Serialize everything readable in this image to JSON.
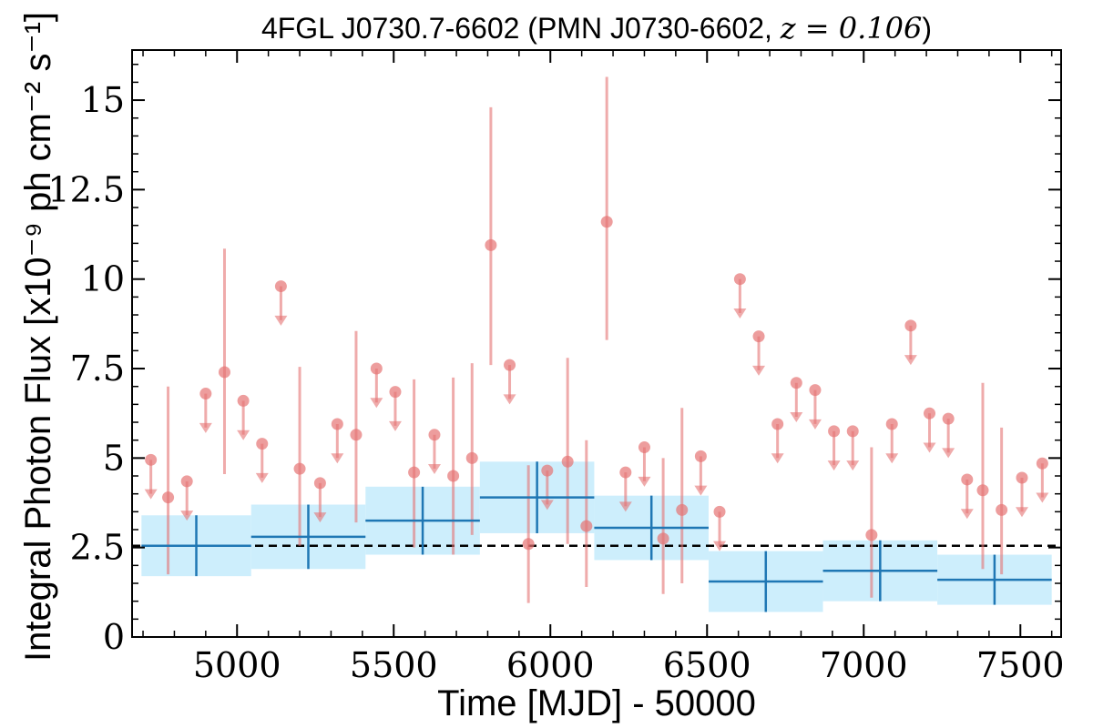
{
  "chart_data": {
    "type": "scatter",
    "title_source": "4FGL J0730.7-6602 (PMN J0730-6602, ",
    "title_math": "z = 0.106",
    "title_close": ")",
    "xlabel": "Time [MJD] - 50000",
    "ylabel": "Integral Photon Flux [x10⁻⁹ ph cm⁻² s⁻¹]",
    "xlim": [
      4665,
      7630
    ],
    "ylim": [
      0,
      16.4
    ],
    "x_ticks": [
      5000,
      5500,
      6000,
      6500,
      7000,
      7500
    ],
    "y_ticks": [
      0,
      2.5,
      5,
      7.5,
      10,
      12.5,
      15
    ],
    "y_tick_labels": [
      "0",
      "2.5",
      "5",
      "7.5",
      "10",
      "12.5",
      "15"
    ],
    "mean_flux": 2.55,
    "colors": {
      "short_bins": "#e57373",
      "long_bins": "#1f77b4",
      "long_bins_band": "#cdeefc",
      "mean_line": "#000000"
    },
    "short_detections": [
      {
        "x": 4780,
        "y": 3.9,
        "lo": 1.75,
        "hi": 7.0
      },
      {
        "x": 4960,
        "y": 7.4,
        "lo": 4.55,
        "hi": 10.85
      },
      {
        "x": 5200,
        "y": 4.7,
        "lo": 2.55,
        "hi": 7.55
      },
      {
        "x": 5380,
        "y": 5.65,
        "lo": 3.2,
        "hi": 8.55
      },
      {
        "x": 5565,
        "y": 4.6,
        "lo": 2.5,
        "hi": 7.2
      },
      {
        "x": 5690,
        "y": 4.5,
        "lo": 2.3,
        "hi": 7.25
      },
      {
        "x": 5750,
        "y": 5.0,
        "lo": 2.85,
        "hi": 7.65
      },
      {
        "x": 5810,
        "y": 10.95,
        "lo": 7.6,
        "hi": 14.8
      },
      {
        "x": 5930,
        "y": 2.6,
        "lo": 0.95,
        "hi": 4.8
      },
      {
        "x": 6055,
        "y": 4.9,
        "lo": 2.6,
        "hi": 7.8
      },
      {
        "x": 6115,
        "y": 3.1,
        "lo": 1.4,
        "hi": 5.5
      },
      {
        "x": 6180,
        "y": 11.6,
        "lo": 8.3,
        "hi": 15.65
      },
      {
        "x": 6360,
        "y": 2.75,
        "lo": 1.2,
        "hi": 5.0
      },
      {
        "x": 6420,
        "y": 3.55,
        "lo": 1.5,
        "hi": 6.4
      },
      {
        "x": 7025,
        "y": 2.85,
        "lo": 1.1,
        "hi": 5.3
      },
      {
        "x": 7380,
        "y": 4.1,
        "lo": 1.9,
        "hi": 7.1
      },
      {
        "x": 7440,
        "y": 3.55,
        "lo": 1.75,
        "hi": 5.85
      }
    ],
    "short_upper_limits": [
      {
        "x": 4725,
        "y": 4.95
      },
      {
        "x": 4840,
        "y": 4.35
      },
      {
        "x": 4900,
        "y": 6.8
      },
      {
        "x": 5020,
        "y": 6.6
      },
      {
        "x": 5080,
        "y": 5.4
      },
      {
        "x": 5140,
        "y": 9.8
      },
      {
        "x": 5265,
        "y": 4.3
      },
      {
        "x": 5320,
        "y": 5.95
      },
      {
        "x": 5445,
        "y": 7.5
      },
      {
        "x": 5505,
        "y": 6.85
      },
      {
        "x": 5630,
        "y": 5.65
      },
      {
        "x": 5870,
        "y": 7.6
      },
      {
        "x": 5990,
        "y": 4.65
      },
      {
        "x": 6240,
        "y": 4.6
      },
      {
        "x": 6300,
        "y": 5.3
      },
      {
        "x": 6480,
        "y": 5.05
      },
      {
        "x": 6540,
        "y": 3.5
      },
      {
        "x": 6605,
        "y": 10.0
      },
      {
        "x": 6665,
        "y": 8.4
      },
      {
        "x": 6725,
        "y": 5.95
      },
      {
        "x": 6785,
        "y": 7.1
      },
      {
        "x": 6845,
        "y": 6.9
      },
      {
        "x": 6905,
        "y": 5.75
      },
      {
        "x": 6965,
        "y": 5.75
      },
      {
        "x": 7090,
        "y": 5.95
      },
      {
        "x": 7150,
        "y": 8.7
      },
      {
        "x": 7210,
        "y": 6.25
      },
      {
        "x": 7270,
        "y": 6.1
      },
      {
        "x": 7330,
        "y": 4.4
      },
      {
        "x": 7505,
        "y": 4.45
      },
      {
        "x": 7570,
        "y": 4.85
      }
    ],
    "long_bins": [
      {
        "x0": 4695,
        "x1": 5045,
        "y": 2.55,
        "err": 0.85
      },
      {
        "x0": 5045,
        "x1": 5410,
        "y": 2.8,
        "err": 0.9
      },
      {
        "x0": 5410,
        "x1": 5775,
        "y": 3.25,
        "err": 0.95
      },
      {
        "x0": 5775,
        "x1": 6140,
        "y": 3.9,
        "err": 1.0
      },
      {
        "x0": 6140,
        "x1": 6505,
        "y": 3.05,
        "err": 0.9
      },
      {
        "x0": 6505,
        "x1": 6870,
        "y": 1.55,
        "err": 0.85
      },
      {
        "x0": 6870,
        "x1": 7235,
        "y": 1.85,
        "err": 0.85
      },
      {
        "x0": 7235,
        "x1": 7600,
        "y": 1.6,
        "err": 0.7
      }
    ]
  }
}
